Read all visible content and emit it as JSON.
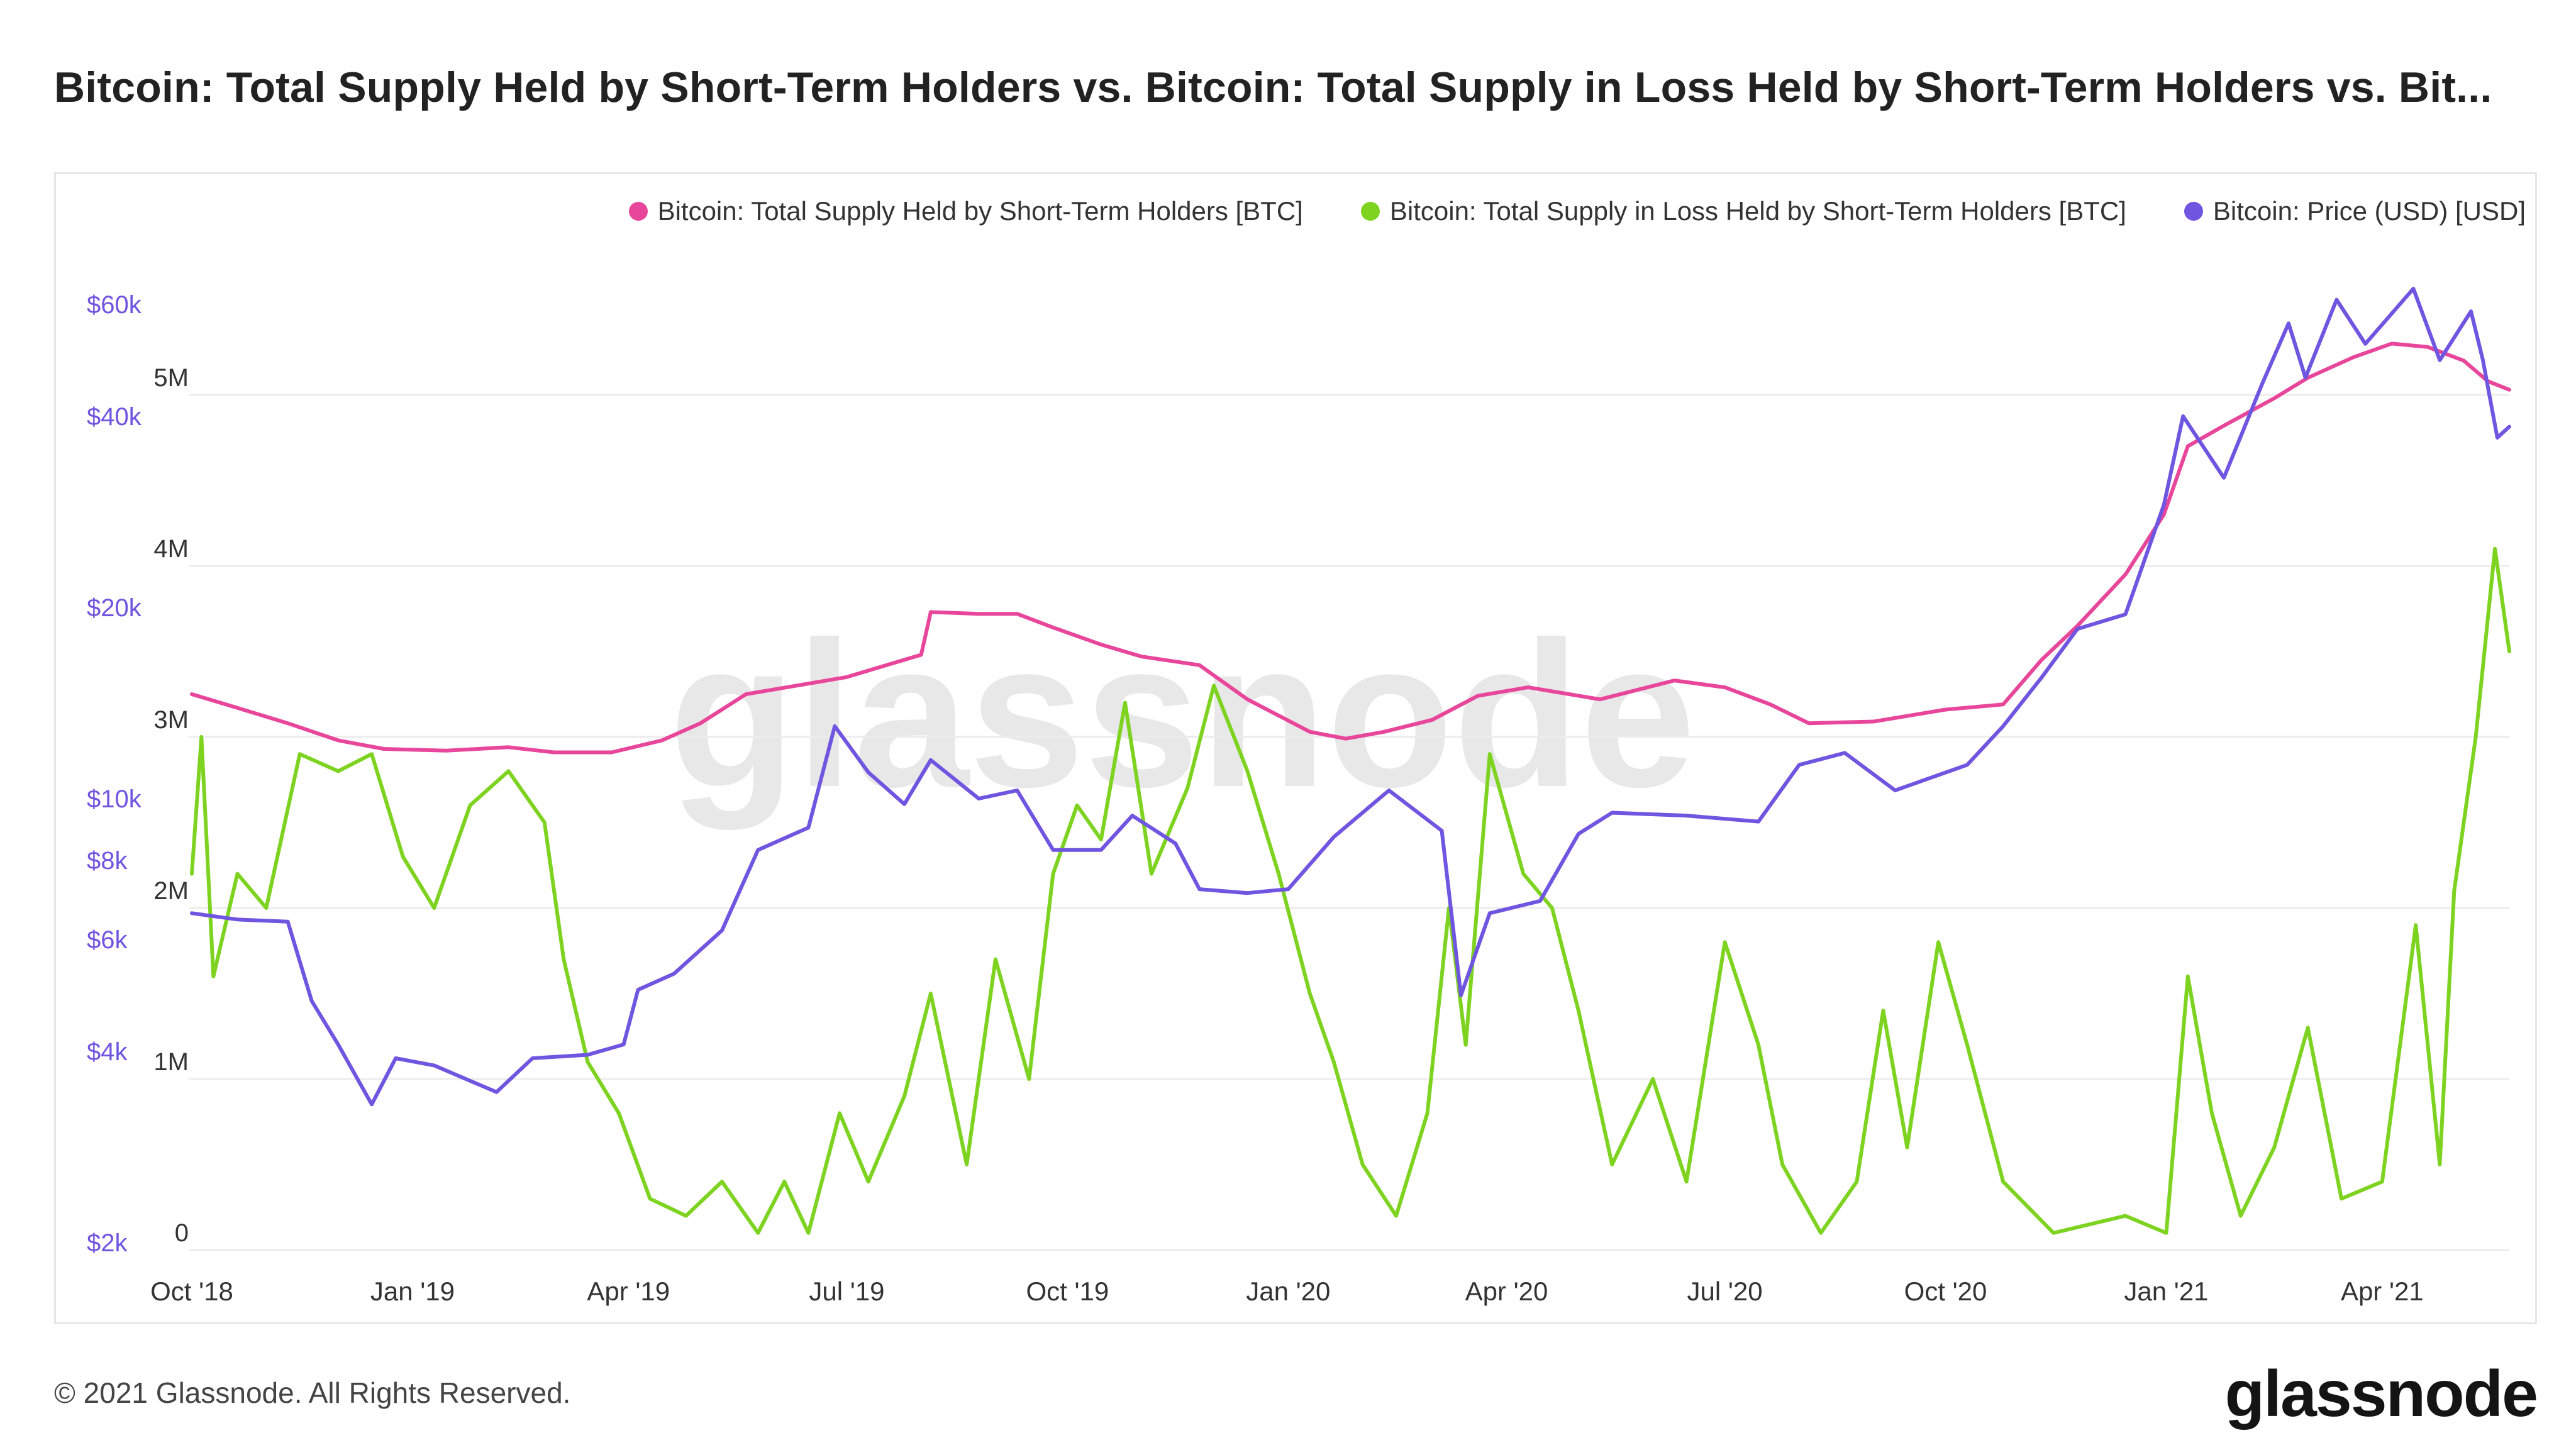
{
  "page": {
    "title": "Bitcoin: Total Supply Held by Short-Term Holders vs. Bitcoin: Total Supply in Loss Held by Short-Term Holders vs. Bit...",
    "watermark": "glassnode",
    "footer": "© 2021 Glassnode. All Rights Reserved.",
    "brand": "glassnode"
  },
  "legend": [
    {
      "label": "Bitcoin: Total Supply Held by Short-Term Holders [BTC]",
      "color": "#e8469a"
    },
    {
      "label": "Bitcoin: Total Supply in Loss Held by Short-Term Holders [BTC]",
      "color": "#7ed321"
    },
    {
      "label": "Bitcoin: Price (USD) [USD]",
      "color": "#6f55e0"
    }
  ],
  "chart_data": {
    "type": "line",
    "x_ticks": [
      "Oct '18",
      "Jan '19",
      "Apr '19",
      "Jul '19",
      "Oct '19",
      "Jan '20",
      "Apr '20",
      "Jul '20",
      "Oct '20",
      "Jan '21",
      "Apr '21"
    ],
    "y_left": {
      "ticks": [
        "0",
        "1M",
        "2M",
        "3M",
        "4M",
        "5M"
      ],
      "range": [
        0,
        5000000
      ]
    },
    "y_right": {
      "scale": "log",
      "ticks": [
        "$2k",
        "$4k",
        "$6k",
        "$8k",
        "$10k",
        "$20k",
        "$40k",
        "$60k"
      ],
      "color": "#6f55e0"
    },
    "grid": true,
    "legend_position": "top-right",
    "x_range": [
      "2018-10-01",
      "2021-05-24"
    ],
    "series": [
      {
        "name": "Bitcoin: Total Supply Held by Short-Term Holders [BTC]",
        "axis": "left",
        "color": "#e8469a",
        "points": [
          [
            "2018-10-01",
            3.25
          ],
          [
            "2018-10-20",
            3.17
          ],
          [
            "2018-11-10",
            3.08
          ],
          [
            "2018-12-01",
            2.98
          ],
          [
            "2018-12-20",
            2.93
          ],
          [
            "2019-01-15",
            2.92
          ],
          [
            "2019-02-10",
            2.94
          ],
          [
            "2019-03-01",
            2.91
          ],
          [
            "2019-03-25",
            2.91
          ],
          [
            "2019-04-15",
            2.98
          ],
          [
            "2019-05-01",
            3.08
          ],
          [
            "2019-05-20",
            3.25
          ],
          [
            "2019-06-10",
            3.3
          ],
          [
            "2019-07-01",
            3.35
          ],
          [
            "2019-07-20",
            3.43
          ],
          [
            "2019-08-01",
            3.48
          ],
          [
            "2019-08-05",
            3.73
          ],
          [
            "2019-08-25",
            3.72
          ],
          [
            "2019-09-10",
            3.72
          ],
          [
            "2019-09-25",
            3.64
          ],
          [
            "2019-10-15",
            3.54
          ],
          [
            "2019-11-01",
            3.47
          ],
          [
            "2019-11-25",
            3.42
          ],
          [
            "2019-12-15",
            3.22
          ],
          [
            "2020-01-10",
            3.03
          ],
          [
            "2020-01-25",
            2.99
          ],
          [
            "2020-02-10",
            3.03
          ],
          [
            "2020-03-01",
            3.1
          ],
          [
            "2020-03-20",
            3.24
          ],
          [
            "2020-04-10",
            3.29
          ],
          [
            "2020-05-10",
            3.22
          ],
          [
            "2020-06-10",
            3.33
          ],
          [
            "2020-07-01",
            3.29
          ],
          [
            "2020-07-20",
            3.19
          ],
          [
            "2020-08-05",
            3.08
          ],
          [
            "2020-09-01",
            3.09
          ],
          [
            "2020-10-01",
            3.16
          ],
          [
            "2020-10-25",
            3.19
          ],
          [
            "2020-11-10",
            3.45
          ],
          [
            "2020-11-25",
            3.65
          ],
          [
            "2020-12-15",
            3.95
          ],
          [
            "2020-12-31",
            4.3
          ],
          [
            "2021-01-10",
            4.7
          ],
          [
            "2021-01-25",
            4.82
          ],
          [
            "2021-02-15",
            4.98
          ],
          [
            "2021-03-01",
            5.1
          ],
          [
            "2021-03-20",
            5.22
          ],
          [
            "2021-04-05",
            5.3
          ],
          [
            "2021-04-20",
            5.28
          ],
          [
            "2021-05-05",
            5.2
          ],
          [
            "2021-05-15",
            5.08
          ],
          [
            "2021-05-24",
            5.03
          ]
        ]
      },
      {
        "name": "Bitcoin: Total Supply in Loss Held by Short-Term Holders [BTC]",
        "axis": "left",
        "color": "#7ed321",
        "points": [
          [
            "2018-10-01",
            2.2
          ],
          [
            "2018-10-05",
            3.0
          ],
          [
            "2018-10-10",
            1.6
          ],
          [
            "2018-10-20",
            2.2
          ],
          [
            "2018-11-01",
            2.0
          ],
          [
            "2018-11-15",
            2.9
          ],
          [
            "2018-12-01",
            2.8
          ],
          [
            "2018-12-15",
            2.9
          ],
          [
            "2018-12-28",
            2.3
          ],
          [
            "2019-01-10",
            2.0
          ],
          [
            "2019-01-25",
            2.6
          ],
          [
            "2019-02-10",
            2.8
          ],
          [
            "2019-02-25",
            2.5
          ],
          [
            "2019-03-05",
            1.7
          ],
          [
            "2019-03-15",
            1.1
          ],
          [
            "2019-03-28",
            0.8
          ],
          [
            "2019-04-10",
            0.3
          ],
          [
            "2019-04-25",
            0.2
          ],
          [
            "2019-05-10",
            0.4
          ],
          [
            "2019-05-25",
            0.1
          ],
          [
            "2019-06-05",
            0.4
          ],
          [
            "2019-06-15",
            0.1
          ],
          [
            "2019-06-28",
            0.8
          ],
          [
            "2019-07-10",
            0.4
          ],
          [
            "2019-07-25",
            0.9
          ],
          [
            "2019-08-05",
            1.5
          ],
          [
            "2019-08-20",
            0.5
          ],
          [
            "2019-09-01",
            1.7
          ],
          [
            "2019-09-15",
            1.0
          ],
          [
            "2019-09-25",
            2.2
          ],
          [
            "2019-10-05",
            2.6
          ],
          [
            "2019-10-15",
            2.4
          ],
          [
            "2019-10-25",
            3.2
          ],
          [
            "2019-11-05",
            2.2
          ],
          [
            "2019-11-20",
            2.7
          ],
          [
            "2019-12-01",
            3.3
          ],
          [
            "2019-12-15",
            2.8
          ],
          [
            "2019-12-28",
            2.2
          ],
          [
            "2020-01-10",
            1.5
          ],
          [
            "2020-01-20",
            1.1
          ],
          [
            "2020-02-01",
            0.5
          ],
          [
            "2020-02-15",
            0.2
          ],
          [
            "2020-02-28",
            0.8
          ],
          [
            "2020-03-08",
            2.0
          ],
          [
            "2020-03-15",
            1.2
          ],
          [
            "2020-03-25",
            2.9
          ],
          [
            "2020-04-08",
            2.2
          ],
          [
            "2020-04-20",
            2.0
          ],
          [
            "2020-05-01",
            1.4
          ],
          [
            "2020-05-15",
            0.5
          ],
          [
            "2020-06-01",
            1.0
          ],
          [
            "2020-06-15",
            0.4
          ],
          [
            "2020-07-01",
            1.8
          ],
          [
            "2020-07-15",
            1.2
          ],
          [
            "2020-07-25",
            0.5
          ],
          [
            "2020-08-10",
            0.1
          ],
          [
            "2020-08-25",
            0.4
          ],
          [
            "2020-09-05",
            1.4
          ],
          [
            "2020-09-15",
            0.6
          ],
          [
            "2020-09-28",
            1.8
          ],
          [
            "2020-10-10",
            1.2
          ],
          [
            "2020-10-25",
            0.4
          ],
          [
            "2020-11-15",
            0.1
          ],
          [
            "2020-12-15",
            0.2
          ],
          [
            "2021-01-01",
            0.1
          ],
          [
            "2021-01-10",
            1.6
          ],
          [
            "2021-01-20",
            0.8
          ],
          [
            "2021-02-01",
            0.2
          ],
          [
            "2021-02-15",
            0.6
          ],
          [
            "2021-03-01",
            1.3
          ],
          [
            "2021-03-15",
            0.3
          ],
          [
            "2021-04-01",
            0.4
          ],
          [
            "2021-04-15",
            1.9
          ],
          [
            "2021-04-25",
            0.5
          ],
          [
            "2021-05-01",
            2.1
          ],
          [
            "2021-05-10",
            3.0
          ],
          [
            "2021-05-18",
            4.1
          ],
          [
            "2021-05-24",
            3.5
          ]
        ]
      },
      {
        "name": "Bitcoin: Price (USD) [USD]",
        "axis": "right",
        "color": "#6f55e0",
        "points": [
          [
            "2018-10-01",
            6600
          ],
          [
            "2018-10-20",
            6450
          ],
          [
            "2018-11-10",
            6400
          ],
          [
            "2018-11-20",
            4800
          ],
          [
            "2018-12-01",
            4100
          ],
          [
            "2018-12-15",
            3300
          ],
          [
            "2018-12-25",
            3900
          ],
          [
            "2019-01-10",
            3800
          ],
          [
            "2019-02-05",
            3450
          ],
          [
            "2019-02-20",
            3900
          ],
          [
            "2019-03-15",
            3950
          ],
          [
            "2019-03-30",
            4100
          ],
          [
            "2019-04-05",
            5000
          ],
          [
            "2019-04-20",
            5300
          ],
          [
            "2019-05-10",
            6200
          ],
          [
            "2019-05-25",
            8300
          ],
          [
            "2019-06-15",
            9000
          ],
          [
            "2019-06-26",
            13000
          ],
          [
            "2019-07-10",
            11000
          ],
          [
            "2019-07-25",
            9800
          ],
          [
            "2019-08-05",
            11500
          ],
          [
            "2019-08-25",
            10000
          ],
          [
            "2019-09-10",
            10300
          ],
          [
            "2019-09-25",
            8300
          ],
          [
            "2019-10-15",
            8300
          ],
          [
            "2019-10-28",
            9400
          ],
          [
            "2019-11-15",
            8500
          ],
          [
            "2019-11-25",
            7200
          ],
          [
            "2019-12-15",
            7100
          ],
          [
            "2020-01-01",
            7200
          ],
          [
            "2020-01-20",
            8700
          ],
          [
            "2020-02-12",
            10300
          ],
          [
            "2020-03-05",
            8900
          ],
          [
            "2020-03-13",
            4900
          ],
          [
            "2020-03-25",
            6600
          ],
          [
            "2020-04-15",
            6900
          ],
          [
            "2020-05-01",
            8800
          ],
          [
            "2020-05-15",
            9500
          ],
          [
            "2020-06-15",
            9400
          ],
          [
            "2020-07-15",
            9200
          ],
          [
            "2020-08-01",
            11300
          ],
          [
            "2020-08-20",
            11800
          ],
          [
            "2020-09-10",
            10300
          ],
          [
            "2020-10-10",
            11300
          ],
          [
            "2020-10-25",
            13000
          ],
          [
            "2020-11-10",
            15500
          ],
          [
            "2020-11-25",
            18500
          ],
          [
            "2020-12-15",
            19500
          ],
          [
            "2020-12-31",
            29000
          ],
          [
            "2021-01-08",
            40000
          ],
          [
            "2021-01-25",
            32000
          ],
          [
            "2021-02-10",
            45000
          ],
          [
            "2021-02-21",
            56000
          ],
          [
            "2021-02-28",
            46000
          ],
          [
            "2021-03-13",
            61000
          ],
          [
            "2021-03-25",
            52000
          ],
          [
            "2021-04-14",
            63500
          ],
          [
            "2021-04-25",
            49000
          ],
          [
            "2021-05-08",
            58500
          ],
          [
            "2021-05-13",
            49000
          ],
          [
            "2021-05-19",
            37000
          ],
          [
            "2021-05-24",
            38500
          ]
        ]
      }
    ]
  }
}
